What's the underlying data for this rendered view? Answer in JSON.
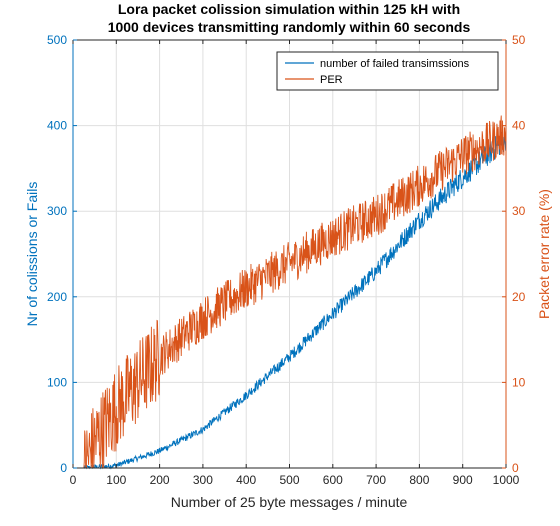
{
  "chart_data": {
    "type": "line",
    "title_line1": "Lora packet colission simulation within   125 kH with",
    "title_line2": "1000 devices transmitting randomly within 60 seconds",
    "xlabel": "Number of 25 byte  messages / minute",
    "ylabel_left": "Nr of colissions or Fails",
    "ylabel_right": "Packet error rate (%)",
    "xlim": [
      0,
      1000
    ],
    "ylim_left": [
      0,
      500
    ],
    "ylim_right": [
      0,
      50
    ],
    "xticks": [
      "0",
      "100",
      "200",
      "300",
      "400",
      "500",
      "600",
      "700",
      "800",
      "900",
      "1000"
    ],
    "yticks_left": [
      "0",
      "100",
      "200",
      "300",
      "400",
      "500"
    ],
    "yticks_right": [
      "0",
      "10",
      "20",
      "30",
      "40",
      "50"
    ],
    "grid": true,
    "legend_position": "top-right",
    "x_start": 25,
    "x_end": 1000,
    "series": [
      {
        "name": "number of failed transimssions",
        "axis": "left",
        "color": "#0072BD",
        "trend_x": [
          25,
          100,
          200,
          300,
          400,
          500,
          600,
          700,
          800,
          900,
          1000
        ],
        "trend_y": [
          0,
          3,
          20,
          45,
          85,
          130,
          180,
          230,
          290,
          340,
          385
        ]
      },
      {
        "name": "PER",
        "axis": "right",
        "color": "#D95319",
        "trend_x": [
          25,
          50,
          100,
          150,
          200,
          300,
          400,
          500,
          600,
          700,
          800,
          900,
          1000
        ],
        "trend_y": [
          0,
          3,
          7,
          10,
          13,
          17.5,
          21,
          24,
          27,
          29.5,
          33,
          36.5,
          39
        ]
      }
    ]
  }
}
